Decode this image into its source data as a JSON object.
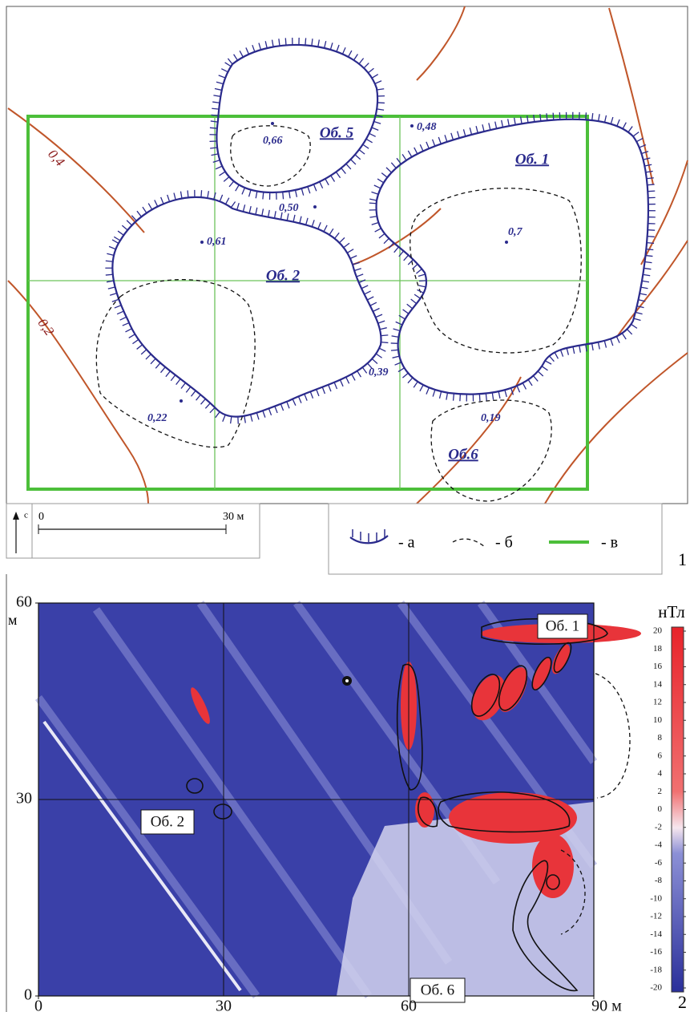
{
  "panel1": {
    "objects": [
      "Об. 5",
      "Об. 1",
      "Об. 2",
      "Об.6"
    ],
    "values": [
      "0,66",
      "0,48",
      "0,50",
      "0,61",
      "0,7",
      "0,39",
      "0,22",
      "0,19"
    ],
    "isolines": [
      "0,4",
      "0,2"
    ],
    "north": "с",
    "scale": [
      "0",
      "30 м"
    ],
    "legend": [
      "- а",
      "- б",
      "- в"
    ],
    "number": "1"
  },
  "panel2": {
    "objects": [
      "Об. 1",
      "Об. 2",
      "Об. 6"
    ],
    "xticks": [
      0,
      30,
      60,
      {
        "value": 90,
        "label": "90 м"
      }
    ],
    "yticks": [
      0,
      30,
      60
    ],
    "yunit": "м",
    "xlim": [
      0,
      90
    ],
    "ylim": [
      0,
      60
    ],
    "colorbar": {
      "title": "нТл",
      "ticks": [
        20,
        18,
        16,
        14,
        12,
        10,
        8,
        6,
        4,
        2,
        0,
        -2,
        -4,
        -6,
        -8,
        -10,
        -12,
        -14,
        -16,
        -18,
        -20
      ],
      "lim": [
        -20,
        20
      ]
    },
    "number": "2"
  }
}
